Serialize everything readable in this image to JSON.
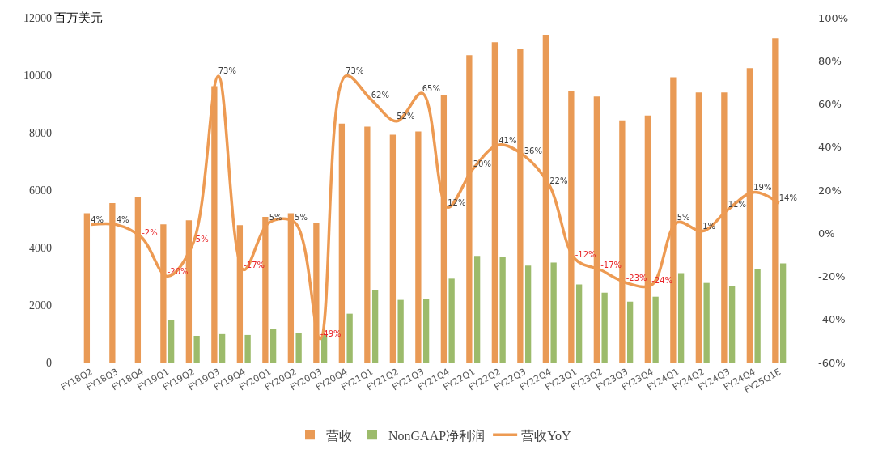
{
  "chart_data": {
    "type": "bar",
    "ylabel": "百万美元",
    "categories": [
      "FY18Q2",
      "FY18Q3",
      "FY18Q4",
      "FY19Q1",
      "FY19Q2",
      "FY19Q3",
      "FY19Q4",
      "FY20Q1",
      "FY20Q2",
      "FY20Q3",
      "FY20Q4",
      "FY21Q1",
      "FY21Q2",
      "FY21Q3",
      "FY21Q4",
      "FY22Q1",
      "FY22Q2",
      "FY22Q3",
      "FY22Q4",
      "FY23Q1",
      "FY23Q2",
      "FY23Q3",
      "FY23Q4",
      "FY24Q1",
      "FY24Q2",
      "FY24Q3",
      "FY24Q4",
      "FY25Q1E"
    ],
    "series": [
      {
        "name": "营收",
        "color": "#e99a55",
        "values": [
          5200,
          5550,
          5770,
          4810,
          4950,
          9620,
          4780,
          5070,
          5200,
          4870,
          8320,
          8210,
          7930,
          8040,
          9310,
          10700,
          11150,
          10930,
          11410,
          9450,
          9260,
          8430,
          8600,
          9930,
          9400,
          9400,
          10250,
          11290
        ]
      },
      {
        "name": "NonGAAP净利润",
        "color": "#9cbb6b",
        "values": [
          null,
          null,
          null,
          1470,
          930,
          990,
          960,
          1160,
          1020,
          990,
          1700,
          2520,
          2180,
          2210,
          2920,
          3710,
          3680,
          3370,
          3480,
          2720,
          2430,
          2120,
          2290,
          3110,
          2770,
          2660,
          3250,
          3450
        ]
      },
      {
        "name": "营收YoY",
        "type": "line",
        "axis": "y2",
        "color": "#ed9a52",
        "values": [
          4,
          4,
          -2,
          -20,
          -5,
          73,
          -17,
          5,
          5,
          -49,
          73,
          62,
          52,
          65,
          12,
          30,
          41,
          36,
          22,
          -12,
          -17,
          -23,
          -24,
          5,
          1,
          11,
          19,
          14
        ],
        "value_labels": [
          "4%",
          "4%",
          "-2%",
          "-20%",
          "-5%",
          "73%",
          "-17%",
          "5%",
          "5%",
          "-49%",
          "73%",
          "62%",
          "52%",
          "65%",
          "12%",
          "30%",
          "41%",
          "36%",
          "22%",
          "-12%",
          "-17%",
          "-23%",
          "-24%",
          "5%",
          "1%",
          "11%",
          "19%",
          "14%"
        ]
      }
    ],
    "ylim": [
      0,
      12000
    ],
    "yticks": [
      0,
      2000,
      4000,
      6000,
      8000,
      10000,
      12000
    ],
    "y2lim": [
      -60,
      100
    ],
    "y2ticks": [
      {
        "value": -60,
        "label": "-60%"
      },
      {
        "value": -40,
        "label": "-40%"
      },
      {
        "value": -20,
        "label": "-20%"
      },
      {
        "value": 0,
        "label": "0%"
      },
      {
        "value": 20,
        "label": "20%"
      },
      {
        "value": 40,
        "label": "40%"
      },
      {
        "value": 60,
        "label": "60%"
      },
      {
        "value": 80,
        "label": "80%"
      },
      {
        "value": 100,
        "label": "100%"
      }
    ],
    "legend": "bottom",
    "grid": false,
    "marker": "none",
    "line_style": "solid"
  }
}
